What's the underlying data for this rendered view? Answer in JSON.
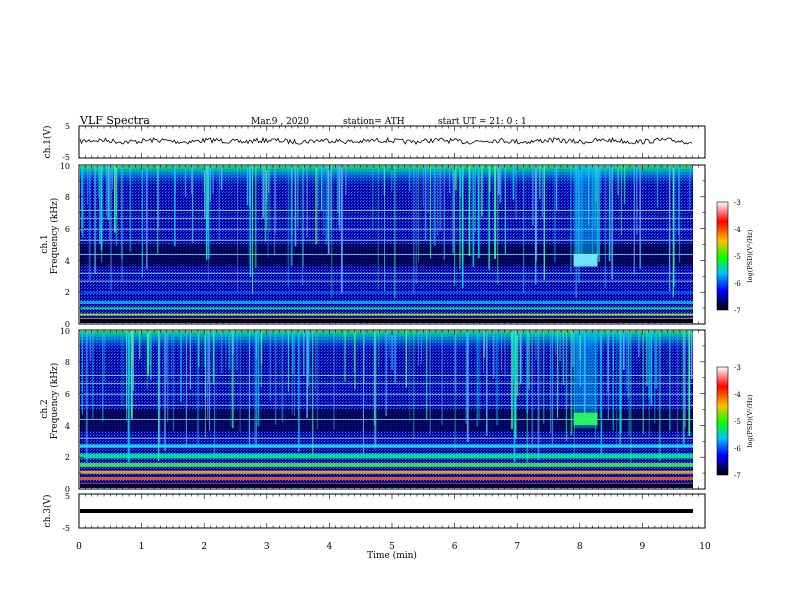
{
  "header": {
    "title": "VLF  Spectra",
    "date": "Mar.9  , 2020",
    "station": "station= ATH",
    "start": "start  UT  =   21: 0  : 1"
  },
  "labels": {
    "ch1_wave": "ch.1(V)",
    "ch1_spec_a": "ch.1",
    "ch1_spec_b": "Frequency  (kHz)",
    "ch2_spec_a": "ch.2",
    "ch2_spec_b": "Frequency  (kHz)",
    "ch3_wave": "ch.3(V)",
    "xlabel": "Time  (min)",
    "colorbar_label": "log(PSD)(V²/Hz)"
  },
  "colorbar": {
    "ticks": [
      "-3",
      "-4",
      "-5",
      "-6",
      "-7"
    ],
    "colors": [
      "#ffffff",
      "#ff0000",
      "#ffc000",
      "#00ff00",
      "#00c0ff",
      "#0000ff",
      "#000000"
    ]
  },
  "chart_data": {
    "type": "heatmap",
    "x": {
      "label": "Time  (min)",
      "range": [
        0,
        10
      ],
      "ticks": [
        "0",
        "1",
        "2",
        "3",
        "4",
        "5",
        "6",
        "7",
        "8",
        "9",
        "10"
      ]
    },
    "panels": [
      {
        "name": "ch.1(V)",
        "kind": "waveform",
        "ylim": [
          -5,
          5
        ],
        "yticks": [
          "5",
          "-5"
        ]
      },
      {
        "name": "ch.1",
        "kind": "spectrogram",
        "ylabel": "Frequency  (kHz)",
        "ylim": [
          0,
          10
        ],
        "yticks": [
          "0",
          "2",
          "4",
          "6",
          "8",
          "10"
        ],
        "clim": [
          -7,
          -3
        ]
      },
      {
        "name": "ch.2",
        "kind": "spectrogram",
        "ylabel": "Frequency  (kHz)",
        "ylim": [
          0,
          10
        ],
        "yticks": [
          "0",
          "2",
          "4",
          "6",
          "8",
          "10"
        ],
        "clim": [
          -7,
          -3
        ]
      },
      {
        "name": "ch.3(V)",
        "kind": "waveform",
        "ylim": [
          -5,
          5
        ],
        "yticks": [
          "5",
          "-5"
        ]
      }
    ]
  }
}
